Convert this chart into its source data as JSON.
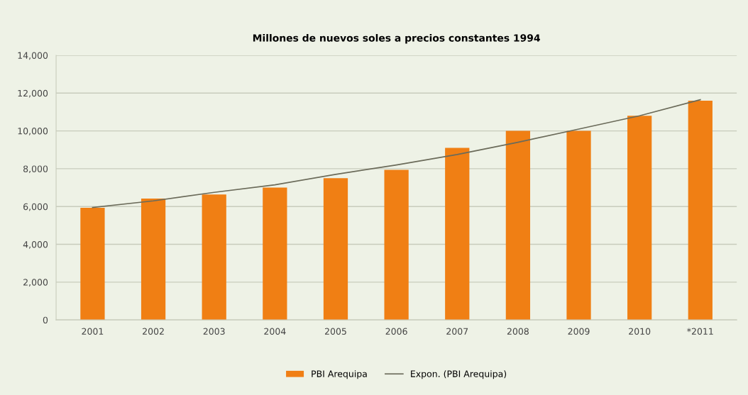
{
  "chart_data": {
    "type": "bar",
    "title": "Millones de nuevos soles a precios constantes 1994",
    "categories": [
      "2001",
      "2002",
      "2003",
      "2004",
      "2005",
      "2006",
      "2007",
      "2008",
      "2009",
      "2010",
      "*2011"
    ],
    "series": [
      {
        "name": "PBI Arequipa",
        "color": "#f07f14",
        "values": [
          5930,
          6420,
          6640,
          7000,
          7500,
          7940,
          9100,
          10000,
          10000,
          10800,
          11600
        ]
      },
      {
        "name": "Expon. (PBI Arequipa)",
        "type": "line",
        "color": "#6b6b5a",
        "values": [
          5950,
          6300,
          6750,
          7150,
          7700,
          8200,
          8750,
          9400,
          10100,
          10800,
          11650
        ]
      }
    ],
    "ylim": [
      0,
      14000
    ],
    "yticks": [
      {
        "value": 0,
        "label": "0"
      },
      {
        "value": 2000,
        "label": "2,000"
      },
      {
        "value": 4000,
        "label": "4,000"
      },
      {
        "value": 6000,
        "label": "6,000"
      },
      {
        "value": 8000,
        "label": "8,000"
      },
      {
        "value": 10000,
        "label": "10,000"
      },
      {
        "value": 12000,
        "label": "12,000"
      },
      {
        "value": 14000,
        "label": "14,000"
      }
    ],
    "grid": "y",
    "legend": "bottom"
  }
}
